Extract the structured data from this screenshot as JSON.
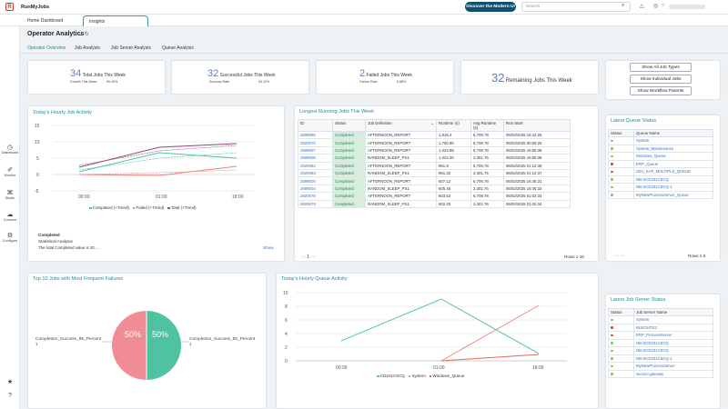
{
  "app": {
    "name": "RunMyJobs",
    "discover": "Discover the Modern UI",
    "search_placeholder": "Search"
  },
  "tabs": {
    "home": "Home Dashboard",
    "insights": "Insights"
  },
  "nav": [
    "Dashboard",
    "Monitor",
    "Studio",
    "Connect",
    "Configure"
  ],
  "header": {
    "title": "Operator Analytics"
  },
  "subtabs": [
    "Operator Overview",
    "Job Analysis",
    "Job Server Analysis",
    "Queue Analysis"
  ],
  "kpis": {
    "total": {
      "value": "34",
      "label": "Total Jobs This Week",
      "sub_label": "Growth This Week",
      "sub_value": "99.40%"
    },
    "success": {
      "value": "32",
      "label": "Successful Jobs This Week",
      "sub_label": "Success Rate",
      "sub_value": "94.12%"
    },
    "failed": {
      "value": "2",
      "label": "Failed Jobs This Week",
      "sub_label": "Failure Rate",
      "sub_value": "5.88%"
    },
    "remaining": {
      "value": "32",
      "label": "Remaining Jobs This Week"
    }
  },
  "buttons": [
    "Show All Job Types",
    "Show Individual Jobs",
    "Show Workflow Parents"
  ],
  "hourly": {
    "title": "Today's Hourly Job Activity",
    "legend": [
      "Completed (+Trend)",
      "Failed (+Trend)",
      "Total (+Trend)"
    ],
    "yticks": [
      "15",
      "10",
      "5",
      "0",
      "-5"
    ],
    "xticks": [
      "00:00",
      "01:00",
      "18:00"
    ],
    "note_title": "Completed",
    "note_sub": "Statistical Analysis",
    "note_text": "The total Completed value is 20. ...",
    "show": "Show"
  },
  "longest": {
    "title": "Longest Running Jobs This Week",
    "headers": [
      "ID",
      "Status",
      "Job Definition",
      "Runtime (s)",
      "Avg Runtime (s)",
      "Run Start"
    ],
    "rows": [
      [
        "2898995",
        "Completed",
        "AFTERNOON_REPORT",
        "1,815.4",
        "6,709.78",
        "06/02/2025 16:42:25"
      ],
      [
        "2920570",
        "Completed",
        "AFTERNOON_REPORT",
        "1,750.80",
        "6,709.78",
        "06/02/2025 00:59:25"
      ],
      [
        "2899007",
        "Completed",
        "AFTERNOON_REPORT",
        "1,022.88",
        "6,709.78",
        "06/02/2025 16:55:38"
      ],
      [
        "2899008",
        "Completed",
        "RANDOM_SLEEP_PS1",
        "1,022.30",
        "2,301.76",
        "06/02/2025 16:55:38"
      ],
      [
        "2920582",
        "Completed",
        "AFTERNOON_REPORT",
        "961.9",
        "6,709.78",
        "06/02/2025 01:12:36"
      ],
      [
        "2920583",
        "Completed",
        "RANDOM_SLEEP_PS1",
        "961.32",
        "2,301.76",
        "06/02/2025 01:12:37"
      ],
      [
        "2899000",
        "Completed",
        "AFTERNOON_REPORT",
        "607.12",
        "6,709.78",
        "06/02/2025 16:45:31"
      ],
      [
        "2899004",
        "Completed",
        "RANDOM_SLEEP_PS1",
        "605.46",
        "2,301.76",
        "06/02/2025 16:45:32"
      ],
      [
        "2920575",
        "Completed",
        "AFTERNOON_REPORT",
        "603.52",
        "6,709.78",
        "06/02/2025 01:02:33"
      ],
      [
        "2920579",
        "Completed",
        "RANDOM_SLEEP_PS1",
        "602.33",
        "2,301.76",
        "06/02/2025 01:02:34"
      ]
    ],
    "page": "1",
    "rows_info": "Rows 1-10"
  },
  "queue_status": {
    "title": "Latest Queue Status",
    "headers": [
      "Status",
      "Queue Name"
    ],
    "rows": [
      {
        "name": "System",
        "color": "#8bc34a"
      },
      {
        "name": "System_Maintenance",
        "color": "#8bc34a"
      },
      {
        "name": "Windows_Queue",
        "color": "#8bc34a"
      },
      {
        "name": "ERP_Queue",
        "color": "#e53935"
      },
      {
        "name": "SD1_SAP_MULTIPLE_QUEUE",
        "color": "#e53935"
      },
      {
        "name": "NB-SCD231C6CQ",
        "color": "#8bc34a"
      },
      {
        "name": "NB-SCD231C6CQ-1",
        "color": "#8bc34a"
      },
      {
        "name": "MyNewProcessServer_Queue",
        "color": "#8bc34a"
      }
    ],
    "rows_info": "Rows 1-8"
  },
  "failures": {
    "title": "Top 10 Jobs with Most Frequent Failures",
    "left_label": "Completion_Success_85_Percent",
    "left_label2": "1",
    "right_label": "Completion_Success_80_Percent",
    "right_label2": "1",
    "left_pct": "50%",
    "right_pct": "50%"
  },
  "queue_activity": {
    "title": "Today's Hourly Queue Activity",
    "yticks": [
      "10",
      "8",
      "6",
      "4",
      "2",
      "0"
    ],
    "xticks": [
      "00:00",
      "01:00",
      "18:00"
    ],
    "legend": [
      "CD231C6CQ",
      "System",
      "Windows_Queue"
    ]
  },
  "server_status": {
    "title": "Latest Job Server Status",
    "headers": [
      "Status",
      "Job Server Name"
    ],
    "rows": [
      {
        "name": "System",
        "color": "#8bc34a"
      },
      {
        "name": "INSIGHTS3",
        "color": "#e53935"
      },
      {
        "name": "ERP_ProcessServer",
        "color": "#e53935"
      },
      {
        "name": "NB-SCD231C6CQ",
        "color": "#8bc34a"
      },
      {
        "name": "NB-SCD231C6CQ",
        "color": "#8bc34a"
      },
      {
        "name": "NB-SCD231C6CQ-1",
        "color": "#8bc34a"
      },
      {
        "name": "MyNewProcessServer",
        "color": "#8bc34a"
      },
      {
        "name": "secure-gateway",
        "color": "#8bc34a"
      }
    ]
  },
  "colors": {
    "accent": "#1a8fa0",
    "completed": "#4fc3a1",
    "failed": "#f08080",
    "total": "#8e4a7a"
  }
}
